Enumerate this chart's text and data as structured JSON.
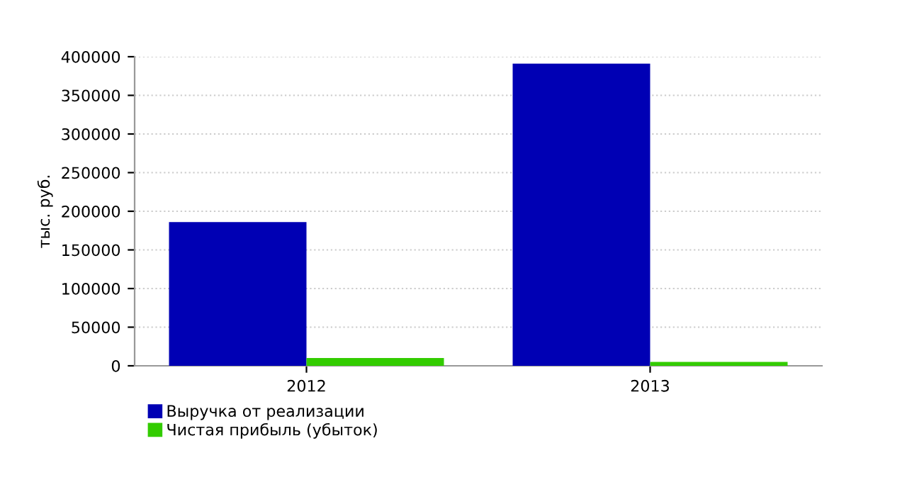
{
  "chart_data": {
    "type": "bar",
    "ylabel": "тыс. руб.",
    "categories": [
      "2012",
      "2013"
    ],
    "series": [
      {
        "name": "Выручка от реализации",
        "color": "#0000b4",
        "values": [
          186000,
          391000
        ]
      },
      {
        "name": "Чистая прибыль (убыток)",
        "color": "#33cc00",
        "values": [
          10000,
          5000
        ]
      }
    ],
    "ylim": [
      0,
      400000
    ],
    "yticks": [
      0,
      50000,
      100000,
      150000,
      200000,
      250000,
      300000,
      350000,
      400000
    ],
    "grid": "y",
    "legend": "bottom left"
  }
}
